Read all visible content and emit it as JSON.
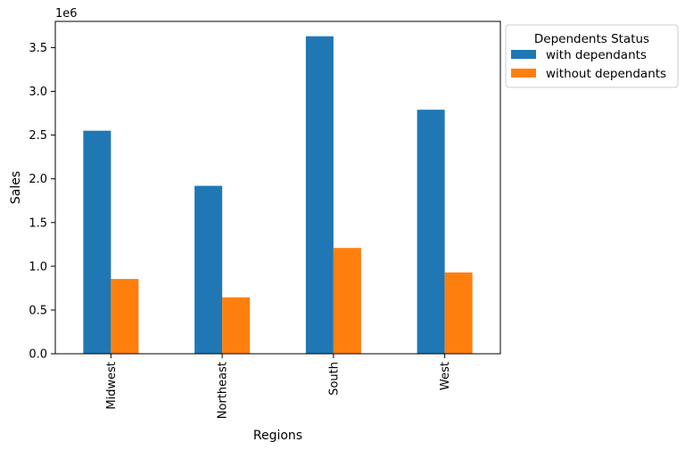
{
  "chart_data": {
    "type": "bar",
    "title": "",
    "xlabel": "Regions",
    "ylabel": "Sales",
    "y_offset_label": "1e6",
    "y_scale": 1000000,
    "ylim": [
      0,
      3800000
    ],
    "yticks": [
      0,
      500000,
      1000000,
      1500000,
      2000000,
      2500000,
      3000000,
      3500000
    ],
    "ytick_labels": [
      "0.0",
      "0.5",
      "1.0",
      "1.5",
      "2.0",
      "2.5",
      "3.0",
      "3.5"
    ],
    "categories": [
      "Midwest",
      "Northeast",
      "South",
      "West"
    ],
    "x_tick_rotation": 90,
    "grid": false,
    "legend": {
      "title": "Dependents Status",
      "placement": "outside-top-right"
    },
    "series": [
      {
        "name": "with dependants",
        "color": "#1f77b4",
        "values": [
          2550000,
          1920000,
          3630000,
          2790000
        ]
      },
      {
        "name": "without dependants",
        "color": "#ff7f0e",
        "values": [
          855000,
          645000,
          1210000,
          930000
        ]
      }
    ]
  }
}
